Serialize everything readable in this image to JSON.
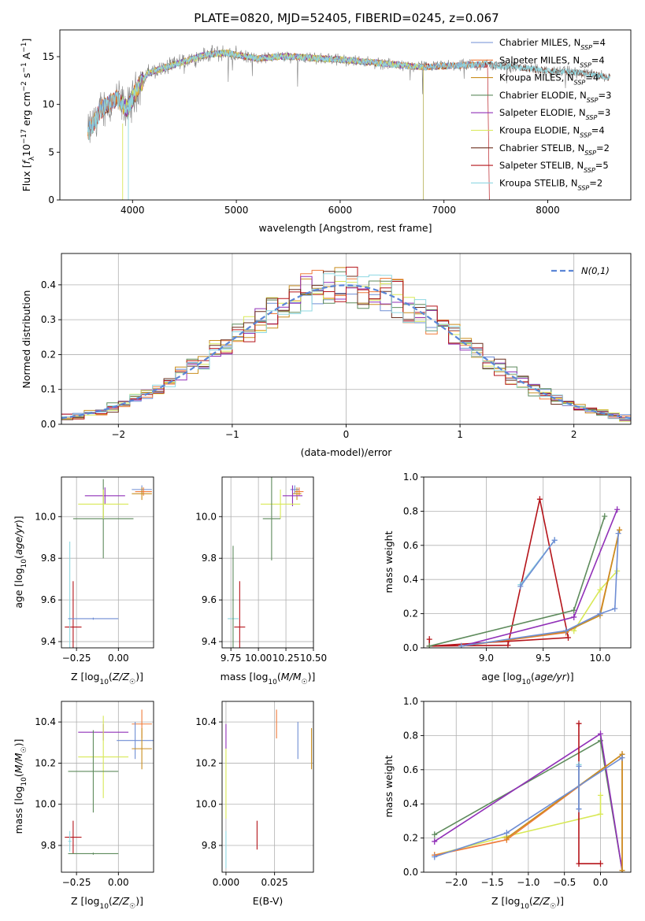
{
  "colors": {
    "Chabrier MILES": "#6f8ed4",
    "Salpeter MILES": "#ef7b3a",
    "Kroupa MILES": "#c98e1f",
    "Chabrier ELODIE": "#5e8b5c",
    "Salpeter ELODIE": "#9130b8",
    "Kroupa ELODIE": "#d8e856",
    "Chabrier STELIB": "#6b2f1e",
    "Salpeter STELIB": "#b5141a",
    "Kroupa STELIB": "#8fd8e2",
    "data": "#808080",
    "normal": "#5b86d6"
  },
  "chart_data": [
    {
      "id": "spectrum",
      "type": "line",
      "title": "PLATE=0820, MJD=52405, FIBERID=0245, z=0.067",
      "xlabel": "wavelength [Angstrom, rest frame]",
      "ylabel": "Flux [f_λ10^-17 erg cm^-2 s^-1 A^-1]",
      "xlim": [
        3300,
        8800
      ],
      "ylim": [
        0,
        17.8
      ],
      "xticks": [
        4000,
        5000,
        6000,
        7000,
        8000
      ],
      "yticks": [
        0,
        5,
        10,
        15
      ],
      "legend_position": "top-right",
      "series": [
        {
          "name": "Chabrier MILES, N_SSP=4",
          "label": "Chabrier MILES, N",
          "sub": "SSP",
          "suffix": "=4"
        },
        {
          "name": "Salpeter MILES, N_SSP=4",
          "label": "Salpeter MILES, N",
          "sub": "SSP",
          "suffix": "=4"
        },
        {
          "name": "Kroupa MILES, N_SSP=4",
          "label": "Kroupa MILES, N",
          "sub": "SSP",
          "suffix": "=4"
        },
        {
          "name": "Chabrier ELODIE, N_SSP=3",
          "label": "Chabrier ELODIE, N",
          "sub": "SSP",
          "suffix": "=3"
        },
        {
          "name": "Salpeter ELODIE, N_SSP=3",
          "label": "Salpeter ELODIE, N",
          "sub": "SSP",
          "suffix": "=3"
        },
        {
          "name": "Kroupa ELODIE, N_SSP=4",
          "label": "Kroupa ELODIE, N",
          "sub": "SSP",
          "suffix": "=4"
        },
        {
          "name": "Chabrier STELIB, N_SSP=2",
          "label": "Chabrier STELIB, N",
          "sub": "SSP",
          "suffix": "=2"
        },
        {
          "name": "Salpeter STELIB, N_SSP=5",
          "label": "Salpeter STELIB, N",
          "sub": "SSP",
          "suffix": "=5"
        },
        {
          "name": "Kroupa STELIB, N_SSP=2",
          "label": "Kroupa STELIB, N",
          "sub": "SSP",
          "suffix": "=2"
        }
      ],
      "continuum_points": [
        [
          3570,
          7.0
        ],
        [
          3700,
          9.5
        ],
        [
          3850,
          10.6
        ],
        [
          3950,
          9.5
        ],
        [
          4050,
          11.8
        ],
        [
          4150,
          13.3
        ],
        [
          4300,
          13.8
        ],
        [
          4500,
          14.5
        ],
        [
          4700,
          15.2
        ],
        [
          4900,
          15.4
        ],
        [
          5100,
          15.0
        ],
        [
          5200,
          14.8
        ],
        [
          5400,
          15.0
        ],
        [
          5600,
          15.0
        ],
        [
          5800,
          14.8
        ],
        [
          6000,
          14.7
        ],
        [
          6200,
          14.5
        ],
        [
          6500,
          14.2
        ],
        [
          6800,
          13.9
        ],
        [
          7000,
          14.0
        ],
        [
          7200,
          14.1
        ],
        [
          7400,
          14.2
        ],
        [
          7600,
          14.0
        ],
        [
          7800,
          13.8
        ],
        [
          8000,
          13.5
        ],
        [
          8200,
          13.4
        ],
        [
          8400,
          13.2
        ],
        [
          8600,
          12.8
        ]
      ]
    },
    {
      "id": "residual-histogram",
      "type": "histogram",
      "xlabel": "(data-model)/error",
      "ylabel": "Normed distribution",
      "xlim": [
        -2.5,
        2.5
      ],
      "ylim": [
        0,
        0.49
      ],
      "xticks": [
        -2,
        -1,
        0,
        1,
        2
      ],
      "yticks": [
        0.0,
        0.1,
        0.2,
        0.3,
        0.4
      ],
      "legend": "N(0,1)",
      "legend_position": "top-right",
      "bin_width": 0.1,
      "reference_curve": "normal distribution, mean 0, sigma 1"
    },
    {
      "id": "age-vs-z",
      "type": "errorbar",
      "xlabel": "Z [log10(Z/Z☉)]",
      "ylabel": "age [log10(age/yr)]",
      "xlim": [
        -0.34,
        0.21
      ],
      "ylim": [
        9.37,
        10.19
      ],
      "xticks": [
        -0.25,
        0.0
      ],
      "yticks": [
        9.4,
        9.6,
        9.8,
        10.0
      ],
      "points": [
        {
          "series": "Chabrier MILES",
          "x": 0.14,
          "xerr": 0.06,
          "y": 10.13,
          "yerr": 0.02
        },
        {
          "series": "Salpeter MILES",
          "x": 0.15,
          "xerr": 0.05,
          "y": 10.12,
          "yerr": 0.02
        },
        {
          "series": "Kroupa MILES",
          "x": 0.14,
          "xerr": 0.06,
          "y": 10.11,
          "yerr": 0.03
        },
        {
          "series": "Chabrier ELODIE",
          "x": -0.09,
          "xerr": 0.18,
          "y": 9.99,
          "yerr": 0.19
        },
        {
          "series": "Salpeter ELODIE",
          "x": -0.08,
          "xerr": 0.12,
          "y": 10.1,
          "yerr": 0.04
        },
        {
          "series": "Kroupa ELODIE",
          "x": -0.09,
          "xerr": 0.15,
          "y": 10.06,
          "yerr": 0.07
        },
        {
          "series": "Salpeter STELIB",
          "x": -0.27,
          "xerr": 0.05,
          "y": 9.47,
          "yerr": 0.22
        },
        {
          "series": "Kroupa STELIB",
          "x": -0.29,
          "xerr": 0.01,
          "y": 9.51,
          "yerr": 0.37
        },
        {
          "series": "Chabrier MILES",
          "x": -0.15,
          "xerr": 0.15,
          "y": 9.51,
          "yerr": 0.005
        }
      ]
    },
    {
      "id": "age-vs-mass",
      "type": "errorbar",
      "xlabel": "mass [log10(M/M☉)]",
      "ylabel": "",
      "xlim": [
        9.67,
        10.5
      ],
      "ylim": [
        9.37,
        10.19
      ],
      "xticks": [
        9.75,
        10.0,
        10.25,
        10.5
      ],
      "yticks": [
        9.4,
        9.6,
        9.8,
        10.0
      ],
      "points": [
        {
          "series": "Chabrier MILES",
          "x": 10.33,
          "xerr": 0.04,
          "y": 10.13,
          "yerr": 0.02
        },
        {
          "series": "Salpeter MILES",
          "x": 10.37,
          "xerr": 0.04,
          "y": 10.12,
          "yerr": 0.02
        },
        {
          "series": "Kroupa MILES",
          "x": 10.35,
          "xerr": 0.04,
          "y": 10.11,
          "yerr": 0.03
        },
        {
          "series": "Salpeter ELODIE",
          "x": 10.31,
          "xerr": 0.09,
          "y": 10.1,
          "yerr": 0.05
        },
        {
          "series": "Kroupa ELODIE",
          "x": 10.2,
          "xerr": 0.18,
          "y": 10.06,
          "yerr": 0.07
        },
        {
          "series": "Chabrier ELODIE",
          "x": 10.12,
          "xerr": 0.08,
          "y": 9.99,
          "yerr": 0.2
        },
        {
          "series": "Salpeter STELIB",
          "x": 9.83,
          "xerr": 0.05,
          "y": 9.47,
          "yerr": 0.22
        },
        {
          "series": "Kroupa STELIB",
          "x": 9.77,
          "xerr": 0.05,
          "y": 9.51,
          "yerr": 0.005
        },
        {
          "series": "Chabrier ELODIE",
          "x": 9.77,
          "xerr": 0.005,
          "y": 9.6,
          "yerr": 0.26
        }
      ]
    },
    {
      "id": "weight-vs-age",
      "type": "line",
      "xlabel": "age [log10(age/yr)]",
      "ylabel": "mass weight",
      "xlim": [
        8.45,
        10.27
      ],
      "ylim": [
        0,
        1
      ],
      "xticks": [
        9.0,
        9.5,
        10.0
      ],
      "yticks": [
        0.0,
        0.2,
        0.4,
        0.6,
        0.8,
        1.0
      ],
      "series": [
        {
          "name": "Salpeter STELIB",
          "x": [
            8.5,
            8.5,
            9.19,
            9.47,
            9.72,
            8.5
          ],
          "y": [
            0.05,
            0.01,
            0.015,
            0.87,
            0.06,
            0.01
          ]
        },
        {
          "name": "Kroupa STELIB",
          "x": [
            9.3,
            9.6
          ],
          "y": [
            0.37,
            0.63
          ]
        },
        {
          "name": "Chabrier MILES",
          "x": [
            9.3,
            9.6
          ],
          "y": [
            0.36,
            0.63
          ]
        },
        {
          "name": "Chabrier ELODIE",
          "x": [
            8.5,
            9.77,
            10.04
          ],
          "y": [
            0.01,
            0.22,
            0.77
          ]
        },
        {
          "name": "Salpeter ELODIE",
          "x": [
            8.78,
            9.77,
            10.15
          ],
          "y": [
            0.01,
            0.18,
            0.81
          ]
        },
        {
          "name": "Kroupa ELODIE",
          "x": [
            9.77,
            10.0,
            10.15
          ],
          "y": [
            0.1,
            0.34,
            0.45
          ]
        },
        {
          "name": "Salpeter MILES",
          "x": [
            8.78,
            9.7,
            10.0,
            10.17
          ],
          "y": [
            0.01,
            0.09,
            0.2,
            0.69
          ]
        },
        {
          "name": "Kroupa MILES",
          "x": [
            8.78,
            9.7,
            10.0,
            10.17
          ],
          "y": [
            0.01,
            0.095,
            0.19,
            0.69
          ]
        },
        {
          "name": "Chabrier MILES",
          "x": [
            8.78,
            9.7,
            10.0,
            10.13,
            10.16
          ],
          "y": [
            0.01,
            0.1,
            0.2,
            0.23,
            0.67
          ]
        }
      ]
    },
    {
      "id": "mass-vs-z",
      "type": "errorbar",
      "xlabel": "Z [log10(Z/Z☉)]",
      "ylabel": "mass [log10(M/M☉)]",
      "xlim": [
        -0.34,
        0.21
      ],
      "ylim": [
        9.67,
        10.5
      ],
      "xticks": [
        -0.25,
        0.0
      ],
      "yticks": [
        9.8,
        10.0,
        10.2,
        10.4
      ],
      "points": [
        {
          "series": "Salpeter MILES",
          "x": 0.14,
          "xerr": 0.06,
          "y": 10.39,
          "yerr": 0.07
        },
        {
          "series": "Chabrier MILES",
          "x": 0.1,
          "xerr": 0.11,
          "y": 10.31,
          "yerr": 0.09
        },
        {
          "series": "Kroupa MILES",
          "x": 0.14,
          "xerr": 0.06,
          "y": 10.27,
          "yerr": 0.1
        },
        {
          "series": "Salpeter ELODIE",
          "x": -0.09,
          "xerr": 0.15,
          "y": 10.35,
          "yerr": 0.04
        },
        {
          "series": "Kroupa ELODIE",
          "x": -0.09,
          "xerr": 0.15,
          "y": 10.23,
          "yerr": 0.2
        },
        {
          "series": "Chabrier ELODIE",
          "x": -0.15,
          "xerr": 0.15,
          "y": 10.16,
          "yerr": 0.2
        },
        {
          "series": "Salpeter STELIB",
          "x": -0.27,
          "xerr": 0.05,
          "y": 9.84,
          "yerr": 0.08
        },
        {
          "series": "Kroupa STELIB",
          "x": -0.29,
          "xerr": 0.01,
          "y": 9.82,
          "yerr": 0.05
        },
        {
          "series": "Chabrier ELODIE",
          "x": -0.15,
          "xerr": 0.15,
          "y": 9.76,
          "yerr": 0.005
        }
      ]
    },
    {
      "id": "mass-vs-ebv",
      "type": "errorbar",
      "xlabel": "E(B-V)",
      "ylabel": "",
      "xlim": [
        -0.002,
        0.045
      ],
      "ylim": [
        9.67,
        10.5
      ],
      "xticks": [
        0.0,
        0.025
      ],
      "yticks": [
        9.8,
        10.0,
        10.2,
        10.4
      ],
      "points": [
        {
          "series": "Salpeter MILES",
          "x": 0.026,
          "y": 10.39,
          "yerr": 0.07
        },
        {
          "series": "Chabrier MILES",
          "x": 0.037,
          "y": 10.31,
          "yerr": 0.09
        },
        {
          "series": "Kroupa MILES",
          "x": 0.044,
          "y": 10.27,
          "yerr": 0.1
        },
        {
          "series": "Salpeter ELODIE",
          "x": 0.0,
          "y": 10.33,
          "yerr": 0.06
        },
        {
          "series": "Kroupa ELODIE",
          "x": 0.0,
          "y": 10.1,
          "yerr": 0.17
        },
        {
          "series": "Salpeter STELIB",
          "x": 0.016,
          "y": 9.85,
          "yerr": 0.07
        },
        {
          "series": "Kroupa STELIB",
          "x": 0.0,
          "y": 9.78,
          "yerr": 0.09
        }
      ]
    },
    {
      "id": "weight-vs-z",
      "type": "line",
      "xlabel": "Z [log10(Z/Z☉)]",
      "ylabel": "mass weight",
      "xlim": [
        -2.45,
        0.42
      ],
      "ylim": [
        0,
        1
      ],
      "xticks": [
        -2.0,
        -1.5,
        -1.0,
        -0.5,
        0.0
      ],
      "yticks": [
        0.0,
        0.2,
        0.4,
        0.6,
        0.8,
        1.0
      ],
      "series": [
        {
          "name": "Chabrier ELODIE",
          "x": [
            -2.3,
            0.0,
            0.3
          ],
          "y": [
            0.22,
            0.77,
            0.01
          ]
        },
        {
          "name": "Salpeter ELODIE",
          "x": [
            -2.3,
            0.0,
            0.3
          ],
          "y": [
            0.18,
            0.81,
            0.01
          ]
        },
        {
          "name": "Kroupa ELODIE",
          "x": [
            -2.3,
            -1.3,
            0.0,
            0.0
          ],
          "y": [
            0.1,
            0.21,
            0.34,
            0.45
          ]
        },
        {
          "name": "Salpeter MILES",
          "x": [
            -2.3,
            -1.3,
            0.3,
            0.3
          ],
          "y": [
            0.1,
            0.19,
            0.69,
            0.01
          ]
        },
        {
          "name": "Kroupa MILES",
          "x": [
            -1.3,
            0.3,
            0.3
          ],
          "y": [
            0.2,
            0.69,
            0.01
          ]
        },
        {
          "name": "Chabrier MILES",
          "x": [
            -2.3,
            -1.3,
            0.3
          ],
          "y": [
            0.09,
            0.23,
            0.67
          ]
        },
        {
          "name": "Salpeter STELIB",
          "x": [
            -0.3,
            -0.3,
            0.0
          ],
          "y": [
            0.87,
            0.05,
            0.05
          ]
        },
        {
          "name": "Kroupa STELIB",
          "x": [
            -0.3,
            -0.3
          ],
          "y": [
            0.63,
            0.37
          ]
        },
        {
          "name": "Chabrier MILES",
          "x": [
            -0.3,
            -0.3
          ],
          "y": [
            0.62,
            0.37
          ]
        }
      ]
    }
  ]
}
